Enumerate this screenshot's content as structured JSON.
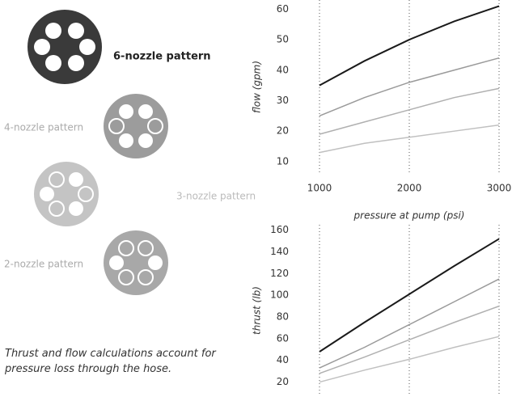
{
  "patterns": [
    "6-nozzle pattern",
    "4-nozzle pattern",
    "3-nozzle pattern",
    "2-nozzle pattern"
  ],
  "caption": "Thrust and flow calculations account for pressure loss through the hose.",
  "chart_data": [
    {
      "type": "line",
      "y_label": "flow (gpm)",
      "x_label": "pressure at pump (psi)",
      "x": [
        1000,
        1500,
        2000,
        2500,
        3000
      ],
      "xlim": [
        1000,
        3000
      ],
      "xticks": [
        1000,
        2000,
        3000
      ],
      "ylim": [
        6,
        63
      ],
      "yticks": [
        10,
        20,
        30,
        40,
        50,
        60
      ],
      "grid": true,
      "series": [
        {
          "color": "#1a1a1a",
          "values": [
            35,
            43,
            50,
            56,
            61
          ]
        },
        {
          "color": "#9a9a9a",
          "values": [
            25,
            31,
            36,
            40,
            44
          ]
        },
        {
          "color": "#b0b0b0",
          "values": [
            19,
            23,
            27,
            31,
            34
          ]
        },
        {
          "color": "#c0c0c0",
          "values": [
            13,
            16,
            18,
            20,
            22
          ]
        }
      ]
    },
    {
      "type": "line",
      "y_label": "thrust (lb)",
      "x": [
        1000,
        1500,
        2000,
        2500,
        3000
      ],
      "xlim": [
        1000,
        3000
      ],
      "ylim": [
        7,
        165
      ],
      "yticks": [
        20,
        40,
        60,
        80,
        100,
        120,
        140,
        160
      ],
      "grid": true,
      "series": [
        {
          "color": "#1a1a1a",
          "values": [
            48,
            75,
            101,
            127,
            152
          ]
        },
        {
          "color": "#9a9a9a",
          "values": [
            33,
            52,
            73,
            94,
            115
          ]
        },
        {
          "color": "#b0b0b0",
          "values": [
            28,
            43,
            59,
            75,
            90
          ]
        },
        {
          "color": "#c0c0c0",
          "values": [
            20,
            31,
            41,
            52,
            62
          ]
        }
      ]
    }
  ]
}
